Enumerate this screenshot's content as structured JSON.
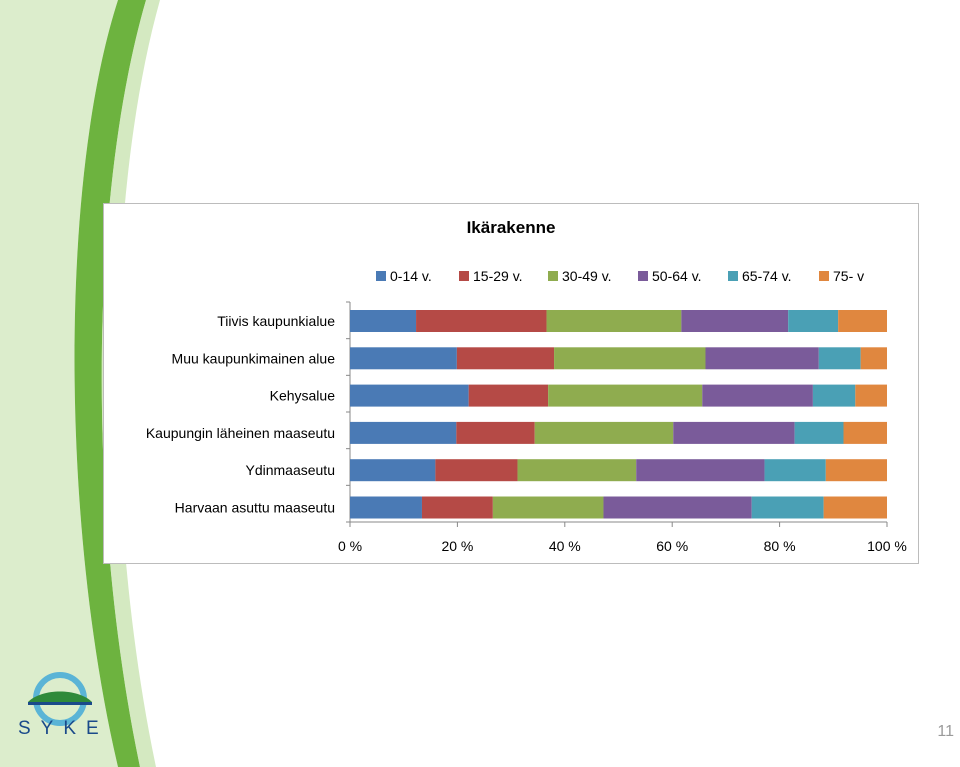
{
  "slide": {
    "page_number": "11",
    "logo_text": "SYKE",
    "colors": {
      "green_band": "#6db33f",
      "pale_green": "#d9ecc8",
      "logo_blue": "#1a4a8a",
      "logo_cyan": "#5ab4d6"
    }
  },
  "chart_data": {
    "type": "bar",
    "orientation": "horizontal",
    "stacked": "percent",
    "title": "Ikärakenne",
    "categories": [
      "Tiivis kaupunkialue",
      "Muu kaupunkimainen alue",
      "Kehysalue",
      "Kaupungin läheinen maaseutu",
      "Ydinmaaseutu",
      "Harvaan asuttu maaseutu"
    ],
    "series": [
      {
        "name": "0-14 v.",
        "color": "#4a7ab5",
        "values": [
          12.3,
          19.9,
          22.1,
          19.8,
          15.9,
          13.4
        ]
      },
      {
        "name": "15-29 v.",
        "color": "#b54a46",
        "values": [
          24.3,
          18.1,
          14.8,
          14.6,
          15.3,
          13.2
        ]
      },
      {
        "name": "30-49 v.",
        "color": "#8fac4f",
        "values": [
          25.1,
          28.2,
          28.7,
          25.8,
          22.1,
          20.6
        ]
      },
      {
        "name": "50-64 v.",
        "color": "#7a5b9a",
        "values": [
          19.9,
          21.1,
          20.6,
          22.6,
          23.9,
          27.6
        ]
      },
      {
        "name": "65-74 v.",
        "color": "#4aa0b5",
        "values": [
          9.3,
          7.8,
          7.9,
          9.1,
          11.4,
          13.4
        ]
      },
      {
        "name": "75- v",
        "color": "#e0873f",
        "values": [
          9.1,
          4.9,
          5.9,
          8.1,
          11.4,
          11.8
        ]
      }
    ],
    "x_tick_labels": [
      "0 %",
      "20 %",
      "40 %",
      "60 %",
      "80 %",
      "100 %"
    ],
    "x_ticks": [
      0,
      20,
      40,
      60,
      80,
      100
    ],
    "xlim": [
      0,
      100
    ],
    "xlabel": "",
    "ylabel": "",
    "legend_position": "top",
    "grid": false
  }
}
